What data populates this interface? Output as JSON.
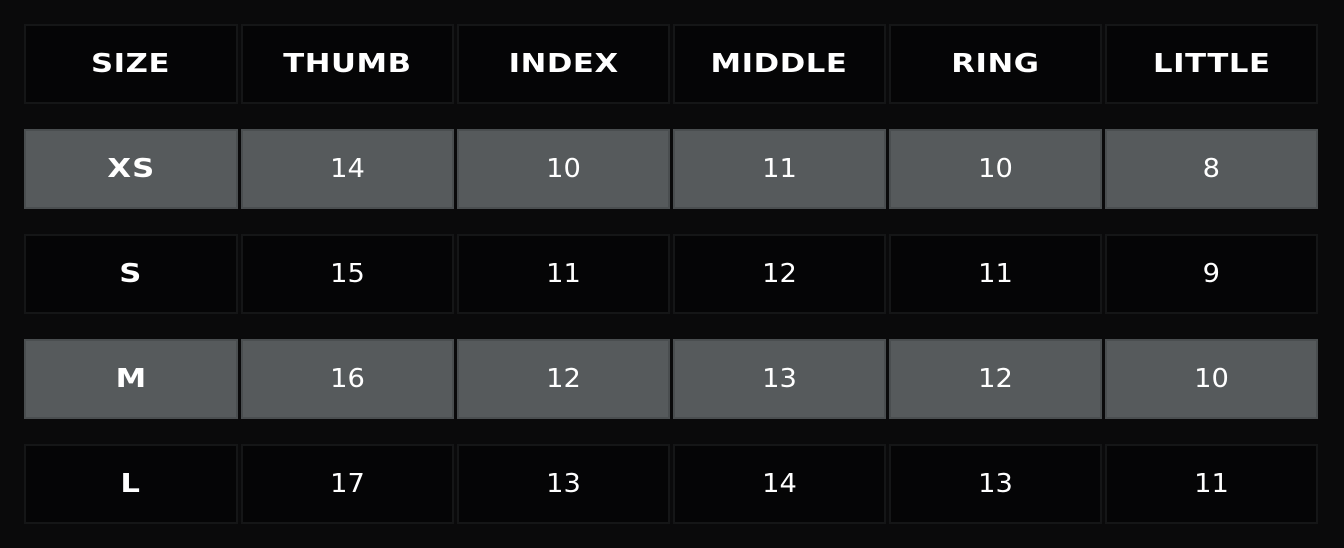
{
  "colors": {
    "background": "#0a0a0b",
    "dark_cell": "#050506",
    "shaded_cell": "#565a5c",
    "text": "#ffffff"
  },
  "headers": [
    "SIZE",
    "THUMB",
    "INDEX",
    "MIDDLE",
    "RING",
    "LITTLE"
  ],
  "rows": [
    {
      "size": "XS",
      "values": [
        "14",
        "10",
        "11",
        "10",
        "8"
      ]
    },
    {
      "size": "S",
      "values": [
        "15",
        "11",
        "12",
        "11",
        "9"
      ]
    },
    {
      "size": "M",
      "values": [
        "16",
        "12",
        "13",
        "12",
        "10"
      ]
    },
    {
      "size": "L",
      "values": [
        "17",
        "13",
        "14",
        "13",
        "11"
      ]
    }
  ]
}
